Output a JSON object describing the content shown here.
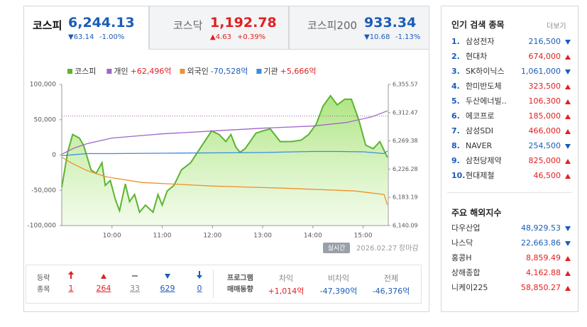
{
  "tabs": [
    {
      "name": "코스피",
      "value": "6,244.13",
      "change": "▼63.14",
      "rate": "-1.00%",
      "color": "#1b5cb8",
      "active": true
    },
    {
      "name": "코스닥",
      "value": "1,192.78",
      "change": "▲4.63",
      "rate": "+0.39%",
      "color": "#e02020",
      "active": false
    },
    {
      "name": "코스피200",
      "value": "933.34",
      "change": "▼10.68",
      "rate": "-1.13%",
      "color": "#1b5cb8",
      "active": false
    }
  ],
  "chart_data": {
    "type": "line",
    "xlim": [
      0,
      390
    ],
    "xticks": [
      {
        "value": 60,
        "label": "10:00"
      },
      {
        "value": 120,
        "label": "11:00"
      },
      {
        "value": 180,
        "label": "12:00"
      },
      {
        "value": 240,
        "label": "13:00"
      },
      {
        "value": 300,
        "label": "14:00"
      },
      {
        "value": 360,
        "label": "15:00"
      }
    ],
    "ylim": [
      -100000,
      100000
    ],
    "yticks": [
      {
        "value": 100000,
        "label": "100,000"
      },
      {
        "value": 50000,
        "label": "50,000"
      },
      0,
      {
        "value": -50000,
        "label": "-50,000"
      },
      {
        "value": -100000,
        "label": "-100,000"
      }
    ],
    "y2lim": [
      6140.09,
      6355.57
    ],
    "y2ticks": [
      {
        "value": 6355.57,
        "label": "6,355.57"
      },
      {
        "value": 6312.47,
        "label": "6,312.47"
      },
      {
        "value": 6269.38,
        "label": "6,269.38"
      },
      {
        "value": 6226.28,
        "label": "6,226.28"
      },
      {
        "value": 6183.19,
        "label": "6,183.19"
      },
      {
        "value": 6140.09,
        "label": "6,140.09"
      }
    ],
    "reference": 6307.27,
    "series": [
      {
        "name": "코스피",
        "color": "#5bb431",
        "axis": "y2",
        "area": true,
        "x": [
          0,
          7,
          13,
          21,
          26,
          35,
          41,
          48,
          52,
          58,
          64,
          69,
          76,
          81,
          87,
          93,
          100,
          109,
          115,
          120,
          126,
          134,
          143,
          154,
          165,
          179,
          188,
          196,
          202,
          208,
          213,
          219,
          225,
          232,
          240,
          249,
          261,
          274,
          286,
          295,
          304,
          312,
          321,
          329,
          338,
          346,
          355,
          363,
          372,
          380,
          389
        ],
        "values": [
          6198.3,
          6252.1,
          6279.1,
          6273.7,
          6262.9,
          6225.0,
          6219.8,
          6235.9,
          6201.5,
          6209.0,
          6180.0,
          6162.7,
          6203.6,
          6176.7,
          6187.5,
          6160.6,
          6171.3,
          6160.6,
          6187.5,
          6171.3,
          6192.9,
          6201.5,
          6225.2,
          6236.0,
          6257.5,
          6284.5,
          6279.1,
          6268.3,
          6279.1,
          6259.7,
          6252.1,
          6257.5,
          6268.3,
          6281.2,
          6284.5,
          6287.7,
          6268.3,
          6268.3,
          6270.5,
          6279.1,
          6295.2,
          6322.2,
          6338.3,
          6324.3,
          6332.9,
          6332.9,
          6300.6,
          6262.9,
          6257.5,
          6268.3,
          6244.13
        ]
      },
      {
        "name": "개인",
        "color": "#a066c8",
        "summary": "+62,496억",
        "summary_color": "#e02020",
        "x": [
          0,
          15,
          30,
          60,
          90,
          120,
          180,
          240,
          300,
          340,
          370,
          389
        ],
        "values": [
          1000,
          10000,
          16000,
          24000,
          27000,
          30000,
          34000,
          38000,
          41000,
          46000,
          54000,
          62496
        ]
      },
      {
        "name": "외국인",
        "color": "#f0902a",
        "summary": "-70,528억",
        "summary_color": "#1b5cb8",
        "x": [
          0,
          11,
          30,
          53,
          96,
          181,
          266,
          350,
          385,
          389
        ],
        "values": [
          -3000,
          -11000,
          -22000,
          -31000,
          -39000,
          -44000,
          -47000,
          -51000,
          -56000,
          -70528
        ]
      },
      {
        "name": "기관",
        "color": "#3a8de0",
        "summary": "+5,666억",
        "summary_color": "#e02020",
        "x": [
          0,
          30,
          60,
          120,
          180,
          240,
          300,
          330,
          360,
          385,
          389
        ],
        "values": [
          -1000,
          2000,
          2000,
          2500,
          3000,
          3500,
          5000,
          5000,
          4500,
          2000,
          5666
        ]
      }
    ]
  },
  "status": {
    "mode": "실시간",
    "date": "2026.02.27",
    "state": "장마감"
  },
  "breadth": {
    "label": [
      "등락",
      "종목"
    ],
    "items": [
      {
        "value": 1,
        "color": "#e02020"
      },
      {
        "value": 264,
        "color": "#e02020"
      },
      {
        "value": 33,
        "color": "#888"
      },
      {
        "value": 629,
        "color": "#1b5cb8"
      },
      {
        "value": 0,
        "color": "#1b5cb8"
      }
    ]
  },
  "program": {
    "label": [
      "프로그램",
      "매매동향"
    ],
    "columns": [
      {
        "name": "차익",
        "value": "+1,014억",
        "color": "#e02020"
      },
      {
        "name": "비차익",
        "value": "-47,390억",
        "color": "#1b5cb8"
      },
      {
        "name": "전체",
        "value": "-46,376억",
        "color": "#1b5cb8"
      }
    ]
  },
  "popular": {
    "title": "인기 검색 종목",
    "more": "더보기",
    "rows": [
      {
        "rank": "1.",
        "name": "삼성전자",
        "price": "216,500",
        "trend": "down"
      },
      {
        "rank": "2.",
        "name": "현대차",
        "price": "674,000",
        "trend": "up"
      },
      {
        "rank": "3.",
        "name": "SK하이닉스",
        "price": "1,061,000",
        "trend": "down"
      },
      {
        "rank": "4.",
        "name": "한미반도체",
        "price": "323,500",
        "trend": "up"
      },
      {
        "rank": "5.",
        "name": "두산에너빌..",
        "price": "106,300",
        "trend": "up"
      },
      {
        "rank": "6.",
        "name": "에코프로",
        "price": "185,000",
        "trend": "up"
      },
      {
        "rank": "7.",
        "name": "삼성SDI",
        "price": "466,000",
        "trend": "up"
      },
      {
        "rank": "8.",
        "name": "NAVER",
        "price": "254,500",
        "trend": "down"
      },
      {
        "rank": "9.",
        "name": "삼천당제약",
        "price": "825,000",
        "trend": "up"
      },
      {
        "rank": "10.",
        "name": "현대제철",
        "price": "46,500",
        "trend": "up"
      }
    ]
  },
  "overseas": {
    "title": "주요 해외지수",
    "rows": [
      {
        "name": "다우산업",
        "value": "48,929.53",
        "trend": "down"
      },
      {
        "name": "나스닥",
        "value": "22,663.86",
        "trend": "down"
      },
      {
        "name": "홍콩H",
        "value": "8,859.49",
        "trend": "up"
      },
      {
        "name": "상해종합",
        "value": "4,162.88",
        "trend": "up"
      },
      {
        "name": "니케이225",
        "value": "58,850.27",
        "trend": "up"
      }
    ]
  }
}
